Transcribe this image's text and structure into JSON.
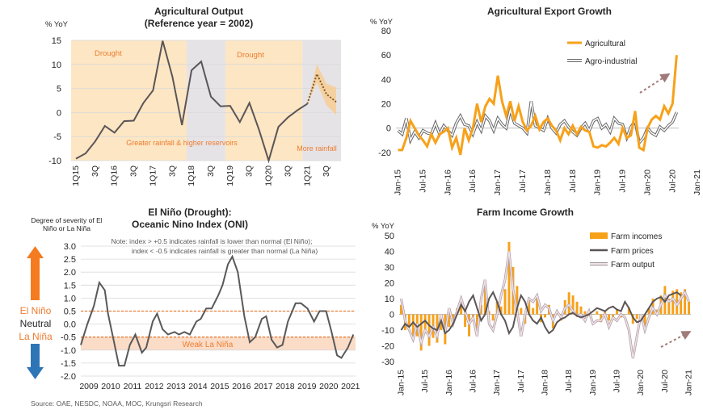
{
  "colors": {
    "orange": "#F7A11A",
    "shade_orange": "#FCE6C3",
    "shade_gray": "#E6E3E6",
    "dark_line": "#5B5557",
    "gray_line": "#595959",
    "accent_text": "#ED7D31",
    "band": "#FBDCC7",
    "pink_line": "#E3C5CF",
    "arrow_dash": "#A07A78",
    "source_text": "#595959"
  },
  "source": "Source: OAE, NESDC, NOAA, MOC, Krungsri Research",
  "chart_data": [
    {
      "id": "agri_output",
      "type": "line",
      "title": "Agricultural Output",
      "subtitle": "(Reference year = 2002)",
      "ylabel": "% YoY",
      "ylim": [
        -10,
        15
      ],
      "yticks": [
        -10,
        -5,
        0,
        5,
        10,
        15
      ],
      "x_tick_labels": [
        "1Q15",
        "3Q",
        "1Q16",
        "3Q",
        "1Q17",
        "3Q",
        "1Q18",
        "3Q",
        "1Q19",
        "3Q",
        "1Q20",
        "3Q",
        "1Q21",
        "3Q"
      ],
      "grid": true,
      "series": [
        {
          "name": "Agricultural output",
          "values": [
            -9.6,
            -8.5,
            -6.0,
            -2.8,
            -4.2,
            -1.8,
            -1.7,
            2.0,
            4.6,
            14.9,
            7.5,
            -2.6,
            8.8,
            10.6,
            3.3,
            1.3,
            1.4,
            -2.0,
            2.0,
            -3.6,
            -10.0,
            -3.0,
            -1.0,
            0.5,
            1.8
          ]
        },
        {
          "name": "Forecast",
          "values": [
            null,
            null,
            null,
            null,
            null,
            null,
            null,
            null,
            null,
            null,
            null,
            null,
            null,
            null,
            null,
            null,
            null,
            null,
            null,
            null,
            null,
            null,
            null,
            null,
            1.8,
            8.0,
            3.8,
            2.2
          ]
        }
      ],
      "forecast_band_upper": [
        null,
        null,
        null,
        null,
        null,
        null,
        null,
        null,
        null,
        null,
        null,
        null,
        null,
        null,
        null,
        null,
        null,
        null,
        null,
        null,
        null,
        null,
        null,
        null,
        1.8,
        10.0,
        6.0,
        5.2
      ],
      "forecast_band_lower": [
        null,
        null,
        null,
        null,
        null,
        null,
        null,
        null,
        null,
        null,
        null,
        null,
        null,
        null,
        null,
        null,
        null,
        null,
        null,
        null,
        null,
        null,
        null,
        null,
        1.8,
        6.2,
        1.5,
        -0.5
      ],
      "shaded_periods": [
        {
          "from": -0.5,
          "to": 11.5,
          "style": "orange",
          "label": "Drought"
        },
        {
          "from": 11.5,
          "to": 15.5,
          "style": "gray",
          "label": "Greater rainfall & higher reservoirs"
        },
        {
          "from": 15.5,
          "to": 23.5,
          "style": "orange",
          "label": "Drought"
        },
        {
          "from": 23.5,
          "to": 27.5,
          "style": "gray",
          "label": "More rainfall"
        }
      ]
    },
    {
      "id": "export_growth",
      "type": "line",
      "title": "Agricultural Export Growth",
      "ylabel": "% YoY",
      "ylim": [
        -30,
        80
      ],
      "yticks": [
        -20,
        0,
        20,
        40,
        60,
        80
      ],
      "x_tick_labels": [
        "Jan-15",
        "Jul-15",
        "Jan-16",
        "Jul-16",
        "Jan-17",
        "Jul-17",
        "Jan-18",
        "Jul-18",
        "Jan-19",
        "Jul-19",
        "Jan-20",
        "Jul-20",
        "Jan-21"
      ],
      "grid": false,
      "legend": "top-right",
      "series": [
        {
          "name": "Agricultural",
          "values": [
            -18,
            -18,
            -8,
            6,
            0,
            -6,
            -10,
            -15,
            -5,
            -12,
            -5,
            -3,
            0,
            -16,
            -8,
            -22,
            0,
            -10,
            0,
            20,
            5,
            18,
            24,
            20,
            43,
            22,
            10,
            22,
            6,
            18,
            5,
            -2,
            2,
            10,
            -1,
            5,
            8,
            2,
            -2,
            -10,
            0,
            -5,
            2,
            -5,
            1,
            -2,
            -3,
            -15,
            -16,
            -14,
            -15,
            -12,
            -8,
            -13,
            0,
            -8,
            -6,
            14,
            -16,
            -18,
            0,
            7,
            10,
            7,
            18,
            12,
            20,
            60
          ]
        },
        {
          "name": "Agro-industrial",
          "values": [
            -2,
            -5,
            8,
            -10,
            -3,
            -8,
            -2,
            -4,
            -5,
            4,
            -5,
            2,
            -2,
            -6,
            4,
            10,
            3,
            2,
            -5,
            5,
            -2,
            10,
            6,
            -2,
            8,
            3,
            0,
            15,
            4,
            2,
            0,
            -4,
            22,
            2,
            0,
            -2,
            8,
            0,
            -4,
            3,
            6,
            1,
            -3,
            -6,
            0,
            4,
            -2,
            6,
            8,
            0,
            3,
            -3,
            8,
            4,
            3,
            -8,
            1,
            6,
            -12,
            -8,
            0,
            -4,
            -6,
            1,
            -2,
            2,
            5,
            13
          ]
        }
      ]
    },
    {
      "id": "oni",
      "type": "line",
      "title": "El Niño (Drought):",
      "subtitle": "Oceanic Nino Index (ONI)",
      "ylabel": "Degree of severity of El Niño or La Niña",
      "ylim": [
        -2.0,
        3.0
      ],
      "yticks": [
        -2.0,
        -1.5,
        -1.0,
        -0.5,
        0.0,
        0.5,
        1.0,
        1.5,
        2.0,
        2.5,
        3.0
      ],
      "x_tick_labels": [
        "2009",
        "2010",
        "2011",
        "2012",
        "2013",
        "2014",
        "2015",
        "2016",
        "2017",
        "2018",
        "2019",
        "2020",
        "2021"
      ],
      "grid": true,
      "note_line1": "Note: index > +0.5 indicates rainfall is lower than normal (El Niño);",
      "note_line2": "index < -0.5 indicates rainfall is greater than normal (La Niña)",
      "thresholds": [
        0.5,
        -0.5
      ],
      "band_label": "Weak La Niña",
      "el_nino_label": "El Niño",
      "neutral_label": "Neutral",
      "la_nina_label": "La Niña",
      "series": [
        {
          "name": "ONI",
          "x": [
            2009.0,
            2009.3,
            2009.6,
            2009.85,
            2010.1,
            2010.25,
            2010.5,
            2010.75,
            2011.0,
            2011.25,
            2011.5,
            2011.8,
            2012.0,
            2012.3,
            2012.5,
            2012.75,
            2013.0,
            2013.3,
            2013.5,
            2013.75,
            2014.0,
            2014.3,
            2014.5,
            2014.75,
            2015.0,
            2015.3,
            2015.5,
            2015.75,
            2015.95,
            2016.2,
            2016.5,
            2016.75,
            2017.0,
            2017.3,
            2017.5,
            2017.75,
            2018.0,
            2018.25,
            2018.5,
            2018.85,
            2019.1,
            2019.4,
            2019.7,
            2019.95,
            2020.25,
            2020.5,
            2020.75,
            2020.95,
            2021.25,
            2021.5
          ],
          "y": [
            -0.8,
            0.0,
            0.7,
            1.6,
            1.3,
            0.4,
            -0.6,
            -1.6,
            -1.6,
            -0.8,
            -0.4,
            -1.1,
            -0.9,
            0.1,
            0.4,
            -0.2,
            -0.4,
            -0.3,
            -0.4,
            -0.3,
            -0.4,
            0.1,
            0.2,
            0.6,
            0.6,
            1.1,
            1.5,
            2.3,
            2.6,
            2.0,
            0.3,
            -0.7,
            -0.5,
            0.2,
            0.3,
            -0.6,
            -0.9,
            -0.8,
            0.1,
            0.8,
            0.8,
            0.6,
            0.1,
            0.5,
            0.5,
            -0.3,
            -1.2,
            -1.3,
            -0.9,
            -0.4
          ]
        }
      ]
    },
    {
      "id": "farm_income",
      "type": "bar",
      "title": "Farm Income Growth",
      "ylabel": "% YoY",
      "ylim": [
        -30,
        50
      ],
      "yticks": [
        -30,
        -20,
        -10,
        0,
        10,
        20,
        30,
        40,
        50
      ],
      "x_tick_labels": [
        "Jan-15",
        "Jul-15",
        "Jan-16",
        "Jul-16",
        "Jan-17",
        "Jul-17",
        "Jan-18",
        "Jul-18",
        "Jan-19",
        "Jul-19",
        "Jan-20",
        "Jul-20",
        "Jan-21"
      ],
      "grid": false,
      "legend": "top-right",
      "series": [
        {
          "name": "Farm incomes",
          "values": [
            6,
            -10,
            -8,
            -16,
            -14,
            -23,
            -12,
            -20,
            -15,
            -18,
            -10,
            -19,
            -8,
            -4,
            4,
            6,
            -8,
            -14,
            -3,
            -10,
            6,
            20,
            2,
            -4,
            8,
            5,
            16,
            46,
            30,
            18,
            4,
            -6,
            9,
            4,
            10,
            -5,
            -2,
            6,
            -9,
            2,
            -4,
            9,
            14,
            12,
            8,
            5,
            2,
            -1,
            0,
            2,
            -5,
            2,
            -4,
            -2,
            3,
            -2,
            0,
            4,
            -6,
            -3,
            -4,
            -10,
            4,
            10,
            3,
            12,
            18,
            10,
            15,
            16,
            14,
            16,
            8
          ]
        },
        {
          "name": "Farm prices",
          "values": [
            -10,
            -6,
            -8,
            -5,
            -8,
            -6,
            -4,
            -7,
            -9,
            -10,
            -4,
            -12,
            -10,
            -6,
            0,
            6,
            2,
            8,
            12,
            4,
            -4,
            0,
            10,
            14,
            8,
            0,
            -4,
            -12,
            -8,
            4,
            12,
            8,
            0,
            -4,
            -6,
            -2,
            -8,
            -12,
            -10,
            -5,
            -3,
            -2,
            0,
            1,
            -1,
            -2,
            -1,
            0,
            2,
            4,
            3,
            2,
            4,
            5,
            3,
            2,
            8,
            4,
            -2,
            -5,
            -4,
            0,
            4,
            8,
            10,
            11,
            8,
            12,
            13,
            14,
            12
          ]
        },
        {
          "name": "Farm output",
          "values": [
            10,
            -4,
            -10,
            -16,
            -6,
            -18,
            -10,
            -14,
            -8,
            -14,
            0,
            -12,
            4,
            -6,
            2,
            10,
            2,
            -6,
            -2,
            -14,
            10,
            22,
            -6,
            -10,
            0,
            12,
            22,
            40,
            16,
            2,
            -14,
            0,
            10,
            8,
            12,
            2,
            6,
            4,
            -4,
            2,
            -2,
            4,
            6,
            2,
            -1,
            0,
            -4,
            2,
            -6,
            -4,
            -4,
            0,
            -8,
            -2,
            -4,
            0,
            -2,
            -10,
            -28,
            -14,
            0,
            -10,
            -2,
            4,
            0,
            6,
            12,
            8,
            10,
            6,
            10,
            14,
            8
          ]
        }
      ]
    }
  ]
}
